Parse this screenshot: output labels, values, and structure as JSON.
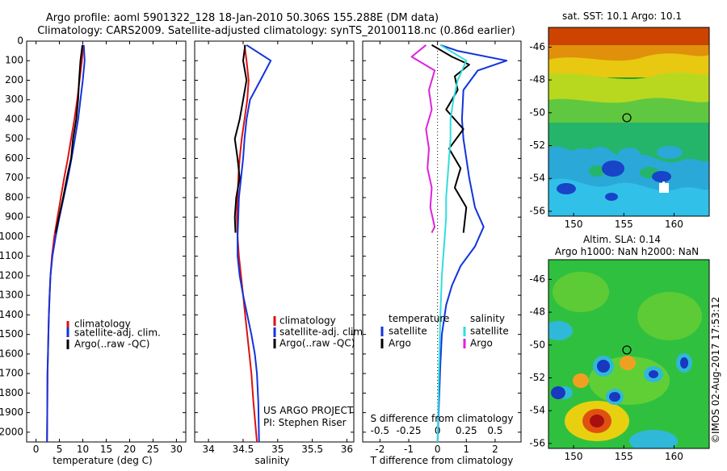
{
  "header": {
    "line1": "Argo profile: aoml 5901322_128 18-Jan-2010 50.306S 155.288E (DM data)",
    "line2": "Climatology: CARS2009. Satellite-adjusted climatology: synTS_20100118.nc (0.86d earlier)"
  },
  "side_text": "©IMOS 02-Aug-2017 17:53:12",
  "colors": {
    "climatology": "#dd1111",
    "satellite": "#1133dd",
    "argo": "#000000",
    "salinity_satellite": "#33dddd",
    "salinity_argo": "#dd22dd"
  },
  "chart_data": [
    {
      "type": "line",
      "xlabel": "temperature (deg C)",
      "xlim": [
        -2,
        32
      ],
      "ylim": [
        0,
        2050
      ],
      "xticks": [
        "0",
        "5",
        "10",
        "15",
        "20",
        "25",
        "30"
      ],
      "xtick_values": [
        0,
        5,
        10,
        15,
        20,
        25,
        30
      ],
      "yticks": [
        "0",
        "100",
        "200",
        "300",
        "400",
        "500",
        "600",
        "700",
        "800",
        "900",
        "1000",
        "1100",
        "1200",
        "1300",
        "1400",
        "1500",
        "1600",
        "1700",
        "1800",
        "1900",
        "2000"
      ],
      "ytick_values": [
        0,
        100,
        200,
        300,
        400,
        500,
        600,
        700,
        800,
        900,
        1000,
        1100,
        1200,
        1300,
        1400,
        1500,
        1600,
        1700,
        1800,
        1900,
        2000
      ],
      "legend": [
        "climatology",
        "satellite-adj. clim.",
        "Argo(..raw -QC)"
      ],
      "series": [
        {
          "name": "climatology",
          "x": [
            10.1,
            9.8,
            9.3,
            8.8,
            8.2,
            7.5,
            6.8,
            6.0,
            5.3,
            4.6,
            3.9,
            3.4,
            3.1,
            2.9,
            2.75,
            2.65,
            2.55,
            2.45,
            2.4,
            2.35
          ],
          "y": [
            20,
            100,
            200,
            300,
            400,
            500,
            600,
            700,
            800,
            900,
            1000,
            1100,
            1200,
            1300,
            1400,
            1500,
            1600,
            1700,
            1900,
            2050
          ]
        },
        {
          "name": "satellite-adj. clim.",
          "x": [
            10.2,
            10.4,
            10.0,
            9.5,
            9.0,
            8.3,
            7.6,
            6.8,
            5.9,
            5.0,
            4.2,
            3.5,
            3.1,
            2.9,
            2.75,
            2.65,
            2.55,
            2.45,
            2.4,
            2.35
          ],
          "y": [
            20,
            100,
            200,
            300,
            400,
            500,
            600,
            700,
            800,
            900,
            1000,
            1100,
            1200,
            1300,
            1400,
            1500,
            1600,
            1700,
            1900,
            2050
          ]
        },
        {
          "name": "Argo(..raw -QC)",
          "x": [
            9.9,
            9.5,
            9.2,
            9.0,
            8.6,
            7.9,
            7.5,
            6.6,
            5.8,
            4.9,
            4.2
          ],
          "y": [
            20,
            100,
            200,
            300,
            400,
            500,
            600,
            700,
            800,
            900,
            980
          ]
        }
      ]
    },
    {
      "type": "line",
      "xlabel": "salinity",
      "xlim": [
        33.8,
        36.1
      ],
      "ylim": [
        0,
        2050
      ],
      "xticks": [
        "34",
        "34.5",
        "35",
        "35.5",
        "36"
      ],
      "xtick_values": [
        34,
        34.5,
        35,
        35.5,
        36
      ],
      "legend": [
        "climatology",
        "satellite-adj. clim.",
        "Argo(..raw -QC)"
      ],
      "annotation": [
        "US ARGO PROJECT",
        "PI: Stephen Riser"
      ],
      "series": [
        {
          "name": "climatology",
          "x": [
            34.52,
            34.55,
            34.58,
            34.56,
            34.52,
            34.48,
            34.45,
            34.43,
            34.42,
            34.41,
            34.42,
            34.44,
            34.47,
            34.5,
            34.53,
            34.56,
            34.59,
            34.62,
            34.65,
            34.7
          ],
          "y": [
            20,
            100,
            200,
            300,
            400,
            500,
            600,
            700,
            800,
            900,
            1000,
            1100,
            1200,
            1300,
            1400,
            1500,
            1600,
            1700,
            1850,
            2050
          ]
        },
        {
          "name": "satellite-adj. clim.",
          "x": [
            34.55,
            34.9,
            34.75,
            34.6,
            34.55,
            34.52,
            34.5,
            34.47,
            34.44,
            34.43,
            34.42,
            34.42,
            34.45,
            34.5,
            34.56,
            34.62,
            34.67,
            34.7,
            34.72,
            34.73
          ],
          "y": [
            20,
            100,
            200,
            300,
            400,
            500,
            600,
            700,
            800,
            900,
            1000,
            1100,
            1200,
            1300,
            1400,
            1500,
            1600,
            1700,
            1850,
            2050
          ]
        },
        {
          "name": "Argo(..raw -QC)",
          "x": [
            34.53,
            34.5,
            34.55,
            34.5,
            34.45,
            34.38,
            34.42,
            34.45,
            34.4,
            34.38,
            34.39
          ],
          "y": [
            20,
            100,
            200,
            300,
            400,
            500,
            600,
            700,
            800,
            900,
            980
          ]
        }
      ]
    },
    {
      "type": "line",
      "xlabel": "T difference from climatology",
      "xlabel2": "S difference from climatology",
      "xlim": [
        -2.6,
        2.9
      ],
      "ylim": [
        0,
        2050
      ],
      "xticks": [
        "-2",
        "-1",
        "0",
        "1",
        "2"
      ],
      "xtick_values": [
        -2,
        -1,
        0,
        1,
        2
      ],
      "s_xticks": [
        "-0.5",
        "-0.25",
        "0",
        "0.25",
        "0.5"
      ],
      "s_xtick_values": [
        -0.5,
        -0.25,
        0,
        0.25,
        0.5
      ],
      "legend_headers": [
        "temperature",
        "salinity"
      ],
      "legend": [
        "satellite",
        "Argo",
        "satellite",
        "Argo"
      ],
      "series": [
        {
          "name": "satellite",
          "x": [
            0.1,
            0.7,
            2.4,
            1.4,
            0.9,
            0.85,
            0.9,
            1.0,
            1.1,
            1.3,
            1.6,
            1.3,
            0.8,
            0.5,
            0.3,
            0.15,
            0.1,
            0.05,
            0.0
          ],
          "y": [
            20,
            50,
            100,
            150,
            250,
            400,
            500,
            600,
            700,
            850,
            950,
            1050,
            1150,
            1250,
            1350,
            1500,
            1650,
            1850,
            2050
          ]
        },
        {
          "name": "Argo",
          "x": [
            -0.2,
            0.5,
            1.1,
            0.6,
            0.7,
            0.3,
            0.9,
            0.4,
            0.8,
            0.6,
            1.0,
            0.9
          ],
          "y": [
            20,
            80,
            120,
            180,
            250,
            350,
            450,
            550,
            650,
            750,
            850,
            980
          ]
        },
        {
          "name": "satellite",
          "x": [
            0.1,
            1.0,
            0.7,
            0.55,
            0.45,
            0.45,
            0.4,
            0.35,
            0.3,
            0.3,
            0.25,
            0.15,
            0.1,
            0.05,
            0.0
          ],
          "y": [
            20,
            100,
            200,
            300,
            400,
            500,
            600,
            700,
            800,
            900,
            1000,
            1200,
            1400,
            1700,
            2050
          ]
        },
        {
          "name": "Argo",
          "x": [
            -0.4,
            -0.9,
            -0.1,
            -0.3,
            -0.2,
            -0.4,
            -0.3,
            -0.35,
            -0.2,
            -0.25,
            -0.1,
            -0.2
          ],
          "y": [
            20,
            80,
            150,
            250,
            350,
            450,
            550,
            650,
            750,
            850,
            950,
            980
          ]
        }
      ]
    },
    {
      "type": "heatmap",
      "title": "sat. SST: 10.1 Argo: 10.1",
      "xticks": [
        "150",
        "155",
        "160"
      ],
      "xtick_values": [
        150,
        155,
        160
      ],
      "yticks": [
        "-46",
        "-48",
        "-50",
        "-52",
        "-54",
        "-56"
      ],
      "ytick_values": [
        -46,
        -48,
        -50,
        -52,
        -54,
        -56
      ],
      "xlim": [
        147.5,
        163.5
      ],
      "ylim": [
        -56.3,
        -44.8
      ],
      "marker": {
        "lon": 155.3,
        "lat": -50.3
      }
    },
    {
      "type": "heatmap",
      "title": "Altim. SLA: 0.14",
      "subtitle": "Argo h1000: NaN h2000: NaN",
      "xticks": [
        "150",
        "155",
        "160"
      ],
      "xtick_values": [
        150,
        155,
        160
      ],
      "yticks": [
        "-46",
        "-48",
        "-50",
        "-52",
        "-54",
        "-56"
      ],
      "ytick_values": [
        -46,
        -48,
        -50,
        -52,
        -54,
        -56
      ],
      "xlim": [
        147.5,
        163.5
      ],
      "ylim": [
        -56.3,
        -44.8
      ],
      "marker": {
        "lon": 155.3,
        "lat": -50.3
      }
    }
  ]
}
